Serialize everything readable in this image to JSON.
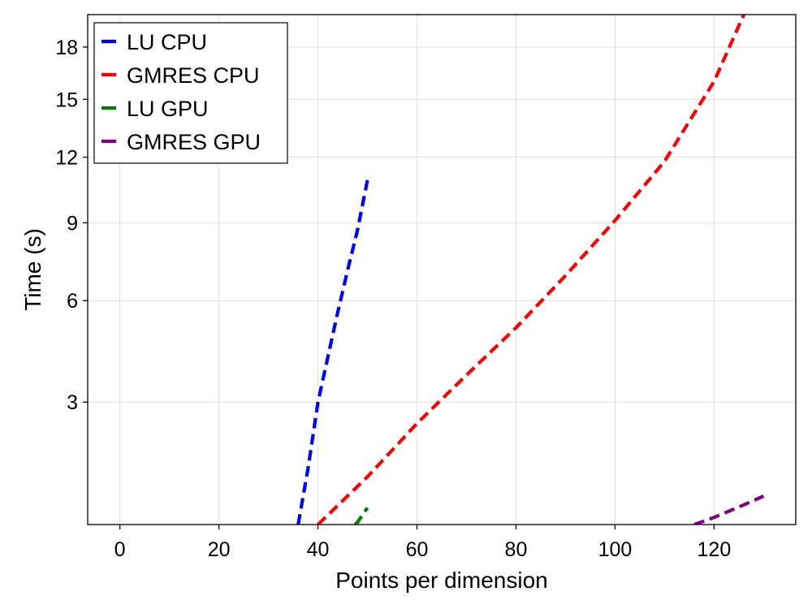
{
  "chart_data": {
    "type": "line",
    "xlabel": "Points per dimension",
    "ylabel": "Time (s)",
    "xlim": [
      -6.5,
      136.5
    ],
    "ylim": [
      0.75,
      20
    ],
    "yscale": "sqrt",
    "xticks": [
      0,
      20,
      40,
      60,
      80,
      100,
      120
    ],
    "xtick_labels": [
      "0",
      "20",
      "40",
      "60",
      "80",
      "100",
      "120"
    ],
    "yticks": [
      3,
      6,
      9,
      12,
      15,
      18
    ],
    "ytick_labels": [
      "3",
      "6",
      "9",
      "12",
      "15",
      "18"
    ],
    "grid": true,
    "legend_position": "top-left",
    "series": [
      {
        "name": "LU CPU",
        "color": "#0000ff",
        "x": [
          36,
          38,
          40,
          42,
          44,
          46,
          48,
          50
        ],
        "y": [
          0.75,
          1.6,
          3.0,
          4.2,
          5.6,
          7.1,
          8.7,
          10.9
        ]
      },
      {
        "name": "GMRES CPU",
        "color": "#ff0000",
        "x": [
          40,
          50,
          60,
          70,
          80,
          90,
          100,
          110,
          120,
          126
        ],
        "y": [
          0.75,
          1.45,
          2.5,
          3.7,
          5.1,
          6.9,
          9.1,
          11.8,
          16.0,
          20.0
        ]
      },
      {
        "name": "LU GPU",
        "color": "#008000",
        "x": [
          47.5,
          48,
          49,
          50
        ],
        "y": [
          0.75,
          0.78,
          0.87,
          0.97
        ]
      },
      {
        "name": "GMRES GPU",
        "color": "#800080",
        "x": [
          116,
          120,
          125,
          130
        ],
        "y": [
          0.75,
          0.84,
          0.98,
          1.14
        ]
      }
    ]
  }
}
